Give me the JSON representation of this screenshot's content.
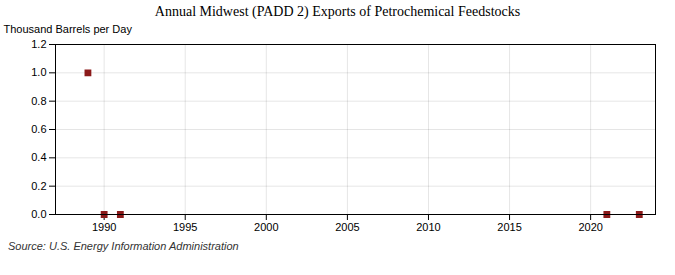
{
  "chart_data": {
    "type": "scatter",
    "title": "Annual Midwest (PADD 2) Exports of Petrochemical Feedstocks",
    "ylabel": "Thousand Barrels per Day",
    "source": "Source: U.S. Energy Information Administration",
    "x": [
      1989,
      1990,
      1991,
      2021,
      2023
    ],
    "values": [
      1.0,
      0.0,
      0.0,
      0.0,
      0.0
    ],
    "color": "#8b1a1a",
    "marker": "square",
    "xlim": [
      1987,
      2024
    ],
    "ylim": [
      0.0,
      1.2
    ],
    "xticks": [
      1990,
      1995,
      2000,
      2005,
      2010,
      2015,
      2020
    ],
    "yticks": [
      {
        "value": 0,
        "label": "0.0"
      },
      0.2,
      0.4,
      0.6,
      0.8,
      {
        "value": 1,
        "label": "1.0"
      },
      1.2
    ],
    "grid": true
  }
}
